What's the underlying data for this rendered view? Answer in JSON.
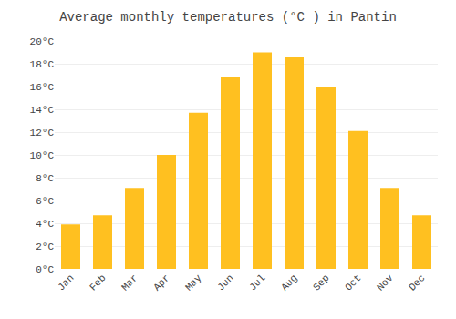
{
  "chart_data": {
    "type": "bar",
    "title": "Average monthly temperatures (°C ) in Pantin",
    "categories": [
      "Jan",
      "Feb",
      "Mar",
      "Apr",
      "May",
      "Jun",
      "Jul",
      "Aug",
      "Sep",
      "Oct",
      "Nov",
      "Dec"
    ],
    "values": [
      3.9,
      4.7,
      7.1,
      10.0,
      13.7,
      16.8,
      19.0,
      18.6,
      16.0,
      12.1,
      7.1,
      4.7
    ],
    "color": "#FFC020",
    "ylim": [
      0,
      20
    ],
    "yticks": [
      {
        "value": 0,
        "label": "0°C"
      },
      {
        "value": 2,
        "label": "2°C"
      },
      {
        "value": 4,
        "label": "4°C"
      },
      {
        "value": 6,
        "label": "6°C"
      },
      {
        "value": 8,
        "label": "8°C"
      },
      {
        "value": 10,
        "label": "10°C"
      },
      {
        "value": 12,
        "label": "12°C"
      },
      {
        "value": 14,
        "label": "14°C"
      },
      {
        "value": 16,
        "label": "16°C"
      },
      {
        "value": 18,
        "label": "18°C"
      },
      {
        "value": 20,
        "label": "20°C"
      }
    ],
    "grid": true
  }
}
